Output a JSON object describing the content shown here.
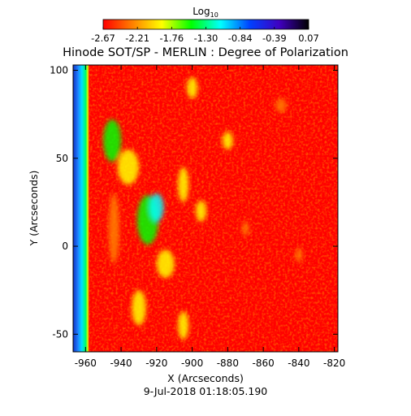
{
  "chart_data": {
    "type": "heatmap",
    "title": "Hinode SOT/SP - MERLIN : Degree of Polarization",
    "xlabel": "X (Arcseconds)",
    "ylabel": "Y (Arcseconds)",
    "footer": "9-Jul-2018 01:18:05.190",
    "xlim": [
      -967,
      -818
    ],
    "ylim": [
      -60,
      103
    ],
    "x_ticks": [
      -960,
      -940,
      -920,
      -900,
      -880,
      -860,
      -840,
      -820
    ],
    "y_ticks": [
      -50,
      0,
      50,
      100
    ],
    "colorbar": {
      "label_base": "Log",
      "label_sub": "10",
      "ticks": [
        "-2.67",
        "-2.21",
        "-1.76",
        "-1.30",
        "-0.84",
        "-0.39",
        "0.07"
      ],
      "range": [
        -2.67,
        0.07
      ],
      "colormap": [
        "#ff0000",
        "#ff8000",
        "#ffff00",
        "#00ff00",
        "#00ffff",
        "#0040ff",
        "#4000c0",
        "#000000"
      ]
    },
    "limb_x": -958,
    "background_value": -2.6,
    "patches": [
      {
        "x": -945,
        "y": 60,
        "rx": 5,
        "ry": 12,
        "v": -1.6
      },
      {
        "x": -936,
        "y": 45,
        "rx": 6,
        "ry": 10,
        "v": -1.8
      },
      {
        "x": -925,
        "y": 15,
        "rx": 6,
        "ry": 14,
        "v": -1.5
      },
      {
        "x": -920,
        "y": 22,
        "rx": 4,
        "ry": 8,
        "v": -1.3
      },
      {
        "x": -915,
        "y": -10,
        "rx": 5,
        "ry": 8,
        "v": -1.7
      },
      {
        "x": -930,
        "y": -35,
        "rx": 4,
        "ry": 10,
        "v": -1.8
      },
      {
        "x": -905,
        "y": 35,
        "rx": 3,
        "ry": 10,
        "v": -1.9
      },
      {
        "x": -900,
        "y": 90,
        "rx": 3,
        "ry": 6,
        "v": -1.8
      },
      {
        "x": -895,
        "y": 20,
        "rx": 3,
        "ry": 6,
        "v": -2.0
      },
      {
        "x": -880,
        "y": 60,
        "rx": 3,
        "ry": 5,
        "v": -2.0
      },
      {
        "x": -870,
        "y": 10,
        "rx": 2,
        "ry": 4,
        "v": -2.1
      },
      {
        "x": -850,
        "y": 80,
        "rx": 3,
        "ry": 4,
        "v": -2.1
      },
      {
        "x": -840,
        "y": -5,
        "rx": 2,
        "ry": 4,
        "v": -2.1
      },
      {
        "x": -905,
        "y": -45,
        "rx": 3,
        "ry": 8,
        "v": -2.0
      },
      {
        "x": -944,
        "y": 10,
        "rx": 3,
        "ry": 20,
        "v": -2.1
      }
    ]
  }
}
